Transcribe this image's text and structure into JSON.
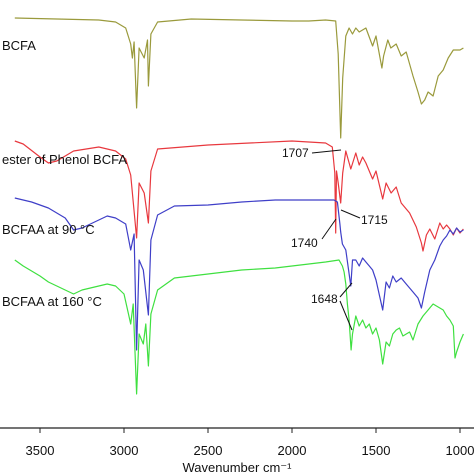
{
  "chart_data": {
    "type": "line",
    "xlabel": "Wavenumber cm⁻¹",
    "x_reversed": true,
    "xlim": [
      3650,
      980
    ],
    "xticks": [
      3500,
      3000,
      2500,
      2000,
      1500,
      1000
    ],
    "xtick_labels": [
      "3500",
      "3000",
      "2500",
      "2000",
      "1500",
      "1000"
    ],
    "y_axis_shown": false,
    "grid": false,
    "series": [
      {
        "name": "BCFA",
        "color": "#9a9a3c",
        "offset": 0.0,
        "points": [
          [
            3650,
            0
          ],
          [
            3400,
            1
          ],
          [
            3150,
            2
          ],
          [
            3050,
            4
          ],
          [
            2990,
            10
          ],
          [
            2960,
            26
          ],
          [
            2950,
            40
          ],
          [
            2940,
            24
          ],
          [
            2925,
            90
          ],
          [
            2910,
            30
          ],
          [
            2880,
            40
          ],
          [
            2860,
            22
          ],
          [
            2855,
            68
          ],
          [
            2840,
            16
          ],
          [
            2800,
            4
          ],
          [
            2600,
            1
          ],
          [
            2300,
            2
          ],
          [
            2000,
            3
          ],
          [
            1900,
            3
          ],
          [
            1800,
            2
          ],
          [
            1740,
            3
          ],
          [
            1725,
            36
          ],
          [
            1710,
            120
          ],
          [
            1698,
            60
          ],
          [
            1680,
            18
          ],
          [
            1660,
            10
          ],
          [
            1640,
            16
          ],
          [
            1620,
            10
          ],
          [
            1600,
            14
          ],
          [
            1560,
            10
          ],
          [
            1520,
            28
          ],
          [
            1500,
            18
          ],
          [
            1465,
            50
          ],
          [
            1455,
            38
          ],
          [
            1430,
            22
          ],
          [
            1412,
            30
          ],
          [
            1380,
            26
          ],
          [
            1350,
            38
          ],
          [
            1320,
            34
          ],
          [
            1300,
            46
          ],
          [
            1280,
            58
          ],
          [
            1250,
            74
          ],
          [
            1230,
            86
          ],
          [
            1210,
            82
          ],
          [
            1190,
            74
          ],
          [
            1160,
            78
          ],
          [
            1130,
            58
          ],
          [
            1100,
            52
          ],
          [
            1070,
            40
          ],
          [
            1040,
            32
          ],
          [
            1000,
            32
          ],
          [
            980,
            30
          ]
        ]
      },
      {
        "name": "ester of Phenol BCFA",
        "color": "#e8383e",
        "offset": 125.0,
        "points": [
          [
            3650,
            -2
          ],
          [
            3600,
            1
          ],
          [
            3500,
            14
          ],
          [
            3450,
            20
          ],
          [
            3400,
            18
          ],
          [
            3300,
            8
          ],
          [
            3150,
            4
          ],
          [
            3050,
            8
          ],
          [
            2990,
            16
          ],
          [
            2960,
            32
          ],
          [
            2925,
            95
          ],
          [
            2910,
            40
          ],
          [
            2880,
            50
          ],
          [
            2855,
            80
          ],
          [
            2840,
            28
          ],
          [
            2800,
            6
          ],
          [
            2500,
            2
          ],
          [
            2000,
            -2
          ],
          [
            1800,
            0
          ],
          [
            1760,
            4
          ],
          [
            1745,
            30
          ],
          [
            1740,
            90
          ],
          [
            1735,
            28
          ],
          [
            1725,
            40
          ],
          [
            1710,
            60
          ],
          [
            1698,
            30
          ],
          [
            1680,
            8
          ],
          [
            1650,
            26
          ],
          [
            1620,
            10
          ],
          [
            1600,
            22
          ],
          [
            1580,
            14
          ],
          [
            1560,
            20
          ],
          [
            1520,
            36
          ],
          [
            1500,
            28
          ],
          [
            1460,
            56
          ],
          [
            1440,
            40
          ],
          [
            1410,
            50
          ],
          [
            1380,
            44
          ],
          [
            1350,
            60
          ],
          [
            1300,
            70
          ],
          [
            1260,
            84
          ],
          [
            1230,
            100
          ],
          [
            1220,
            108
          ],
          [
            1200,
            92
          ],
          [
            1180,
            86
          ],
          [
            1150,
            96
          ],
          [
            1120,
            80
          ],
          [
            1100,
            86
          ],
          [
            1080,
            82
          ],
          [
            1060,
            86
          ],
          [
            1040,
            92
          ],
          [
            1020,
            85
          ],
          [
            1000,
            90
          ],
          [
            980,
            86
          ]
        ]
      },
      {
        "name": "BCFAA at 90 °C",
        "color": "#3f3fc8",
        "offset": 182.0,
        "points": [
          [
            3650,
            -2
          ],
          [
            3550,
            2
          ],
          [
            3450,
            8
          ],
          [
            3350,
            18
          ],
          [
            3300,
            30
          ],
          [
            3250,
            28
          ],
          [
            3200,
            24
          ],
          [
            3100,
            16
          ],
          [
            3050,
            18
          ],
          [
            2990,
            24
          ],
          [
            2960,
            50
          ],
          [
            2940,
            34
          ],
          [
            2925,
            150
          ],
          [
            2910,
            60
          ],
          [
            2885,
            70
          ],
          [
            2855,
            115
          ],
          [
            2840,
            40
          ],
          [
            2800,
            15
          ],
          [
            2700,
            6
          ],
          [
            2500,
            5
          ],
          [
            2300,
            2
          ],
          [
            2100,
            0
          ],
          [
            1900,
            0
          ],
          [
            1750,
            0
          ],
          [
            1730,
            2
          ],
          [
            1715,
            24
          ],
          [
            1710,
            32
          ],
          [
            1700,
            44
          ],
          [
            1680,
            50
          ],
          [
            1650,
            86
          ],
          [
            1640,
            60
          ],
          [
            1620,
            60
          ],
          [
            1600,
            66
          ],
          [
            1580,
            58
          ],
          [
            1560,
            62
          ],
          [
            1540,
            66
          ],
          [
            1520,
            70
          ],
          [
            1500,
            80
          ],
          [
            1460,
            110
          ],
          [
            1440,
            82
          ],
          [
            1420,
            88
          ],
          [
            1400,
            76
          ],
          [
            1380,
            82
          ],
          [
            1350,
            78
          ],
          [
            1320,
            84
          ],
          [
            1300,
            88
          ],
          [
            1280,
            92
          ],
          [
            1250,
            98
          ],
          [
            1230,
            108
          ],
          [
            1210,
            92
          ],
          [
            1180,
            70
          ],
          [
            1150,
            60
          ],
          [
            1120,
            46
          ],
          [
            1100,
            40
          ],
          [
            1080,
            36
          ],
          [
            1060,
            30
          ],
          [
            1040,
            34
          ],
          [
            1020,
            28
          ],
          [
            1000,
            32
          ],
          [
            980,
            30
          ]
        ]
      },
      {
        "name": "BCFAA at 160 °C",
        "color": "#3fe040",
        "offset": 246.0,
        "points": [
          [
            3650,
            -4
          ],
          [
            3600,
            2
          ],
          [
            3500,
            12
          ],
          [
            3450,
            18
          ],
          [
            3400,
            22
          ],
          [
            3350,
            26
          ],
          [
            3300,
            30
          ],
          [
            3250,
            26
          ],
          [
            3200,
            24
          ],
          [
            3100,
            20
          ],
          [
            3050,
            22
          ],
          [
            3000,
            30
          ],
          [
            2960,
            60
          ],
          [
            2945,
            40
          ],
          [
            2925,
            130
          ],
          [
            2910,
            70
          ],
          [
            2885,
            80
          ],
          [
            2870,
            60
          ],
          [
            2855,
            102
          ],
          [
            2840,
            50
          ],
          [
            2800,
            26
          ],
          [
            2700,
            14
          ],
          [
            2600,
            12
          ],
          [
            2500,
            10
          ],
          [
            2300,
            6
          ],
          [
            2100,
            4
          ],
          [
            1900,
            0
          ],
          [
            1800,
            -2
          ],
          [
            1720,
            -4
          ],
          [
            1700,
            2
          ],
          [
            1690,
            8
          ],
          [
            1680,
            20
          ],
          [
            1670,
            40
          ],
          [
            1660,
            56
          ],
          [
            1648,
            86
          ],
          [
            1640,
            70
          ],
          [
            1620,
            52
          ],
          [
            1600,
            62
          ],
          [
            1580,
            56
          ],
          [
            1560,
            64
          ],
          [
            1540,
            60
          ],
          [
            1520,
            70
          ],
          [
            1500,
            64
          ],
          [
            1480,
            76
          ],
          [
            1460,
            100
          ],
          [
            1440,
            78
          ],
          [
            1420,
            82
          ],
          [
            1400,
            70
          ],
          [
            1380,
            66
          ],
          [
            1360,
            64
          ],
          [
            1340,
            72
          ],
          [
            1300,
            68
          ],
          [
            1280,
            76
          ],
          [
            1250,
            60
          ],
          [
            1220,
            52
          ],
          [
            1200,
            48
          ],
          [
            1160,
            40
          ],
          [
            1100,
            46
          ],
          [
            1080,
            52
          ],
          [
            1060,
            56
          ],
          [
            1040,
            62
          ],
          [
            1030,
            94
          ],
          [
            1020,
            88
          ],
          [
            1000,
            78
          ],
          [
            980,
            70
          ]
        ]
      }
    ],
    "legend_labels": [
      {
        "text": "BCFA",
        "series": 0
      },
      {
        "text": "ester of Phenol BCFA",
        "series": 1
      },
      {
        "text": "BCFAA at 90 °C",
        "series": 2
      },
      {
        "text": "BCFAA at 160 °C",
        "series": 3
      }
    ],
    "annotations": [
      {
        "text": "1707",
        "x": 1707
      },
      {
        "text": "1715",
        "x": 1715
      },
      {
        "text": "1740",
        "x": 1740
      },
      {
        "text": "1648",
        "x": 1648
      }
    ]
  }
}
